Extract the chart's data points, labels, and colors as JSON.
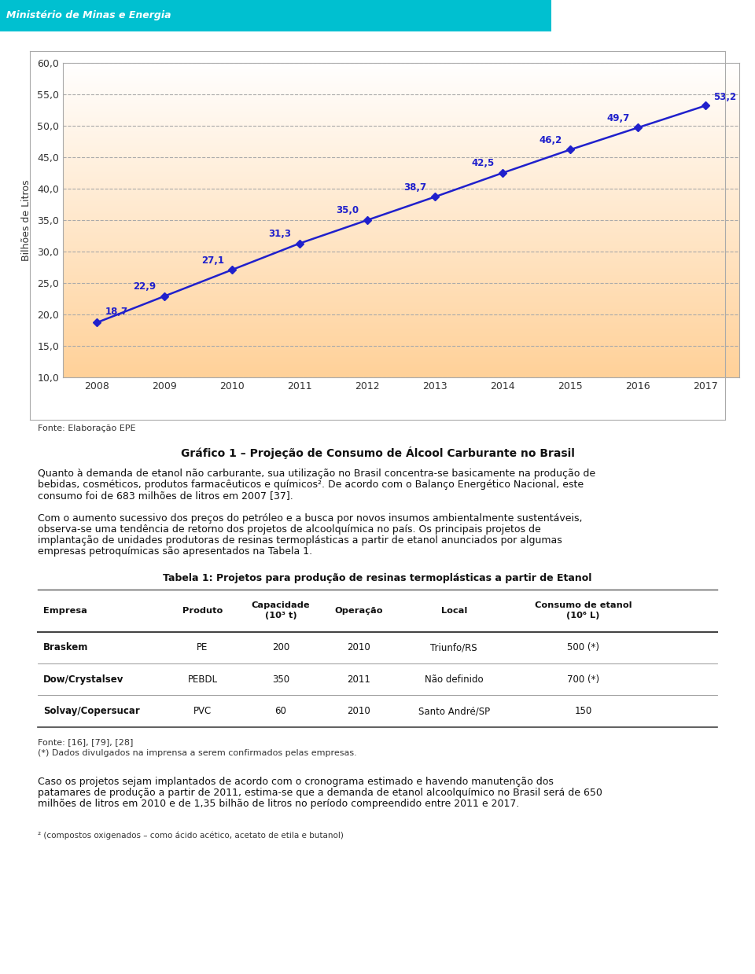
{
  "header_text": "Ministério de Minas e Energia",
  "line_color": "#2020CC",
  "marker_color": "#2020CC",
  "years": [
    2008,
    2009,
    2010,
    2011,
    2012,
    2013,
    2014,
    2015,
    2016,
    2017
  ],
  "values": [
    18.7,
    22.9,
    27.1,
    31.3,
    35.0,
    38.7,
    42.5,
    46.2,
    49.7,
    53.2
  ],
  "ylabel": "Bilhões de Litros",
  "ylim_min": 10.0,
  "ylim_max": 60.0,
  "yticks": [
    10.0,
    15.0,
    20.0,
    25.0,
    30.0,
    35.0,
    40.0,
    45.0,
    50.0,
    55.0,
    60.0
  ],
  "source_text": "Fonte: Elaboração EPE",
  "chart_title": "Gráfico 1 – Projeção de Consumo de Álcool Carburante no Brasil",
  "paragraph1": "Quanto à demanda de etanol não carburante, sua utilização no Brasil concentra-se basicamente na produção de bebidas, cosméticos, produtos farmacêuticos e químicos². De acordo com o Balanço Energético Nacional, este consumo foi de 683 milhões de litros em 2007 [37].",
  "paragraph2": "Com o aumento sucessivo dos preços do petróleo e a busca por novos insumos ambientalmente sustentáveis, observa-se uma tendência de retorno dos projetos de alcoolquímica no país. Os principais projetos de implantação de unidades produtoras de resinas termoplásticas a partir de etanol anunciados por algumas empresas petroquímicas são apresentados na Tabela 1.",
  "table_title": "Tabela 1: Projetos para produção de resinas termoplásticas a partir de Etanol",
  "table_headers": [
    "Empresa",
    "Produto",
    "Capacidade\n(10³ t)",
    "Operação",
    "Local",
    "Consumo de etanol\n(10⁶ L)"
  ],
  "table_rows": [
    [
      "Braskem",
      "PE",
      "200",
      "2010",
      "Triunfo/RS",
      "500 (*)"
    ],
    [
      "Dow/Crystalsev",
      "PEBDL",
      "350",
      "2011",
      "Não definido",
      "700 (*)"
    ],
    [
      "Solvay/Copersucar",
      "PVC",
      "60",
      "2010",
      "Santo André/SP",
      "150"
    ]
  ],
  "table_note1": "Fonte: [16], [79], [28]",
  "table_note2": "(*) Dados divulgados na imprensa a serem confirmados pelas empresas.",
  "paragraph3": "Caso os projetos sejam implantados de acordo com o cronograma estimado e havendo manutenção dos patamares de produção a partir de 2011, estima-se que a demanda de etanol alcoolquímico no Brasil será de 650 milhões de litros em 2010 e de 1,35 bilhão de litros no período compreendido entre 2011 e 2017.",
  "footnote": "² (compostos oxigenados – como ácido acético, acetato de etila e butanol)"
}
